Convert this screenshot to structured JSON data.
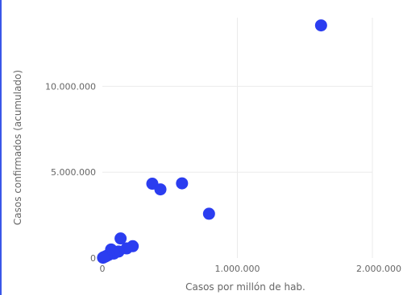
{
  "chart_data": {
    "type": "scatter",
    "xlabel": "Casos por millón de hab.",
    "ylabel": "Casos confirmados (acumulado)",
    "xlim": [
      0,
      2000000
    ],
    "ylim": [
      0,
      14000000
    ],
    "x_ticks": [
      0,
      1000000,
      2000000
    ],
    "x_tick_labels": [
      "0",
      "1.000.000",
      "2.000.000"
    ],
    "y_ticks": [
      0,
      5000000,
      10000000
    ],
    "y_tick_labels": [
      "0",
      "5.000.000",
      "10.000.000"
    ],
    "grid": true,
    "marker_color": "#2b3df0",
    "points": [
      {
        "x": 1620000,
        "y": 13550000
      },
      {
        "x": 590000,
        "y": 4350000
      },
      {
        "x": 370000,
        "y": 4330000
      },
      {
        "x": 430000,
        "y": 4000000
      },
      {
        "x": 790000,
        "y": 2580000
      },
      {
        "x": 135000,
        "y": 1140000
      },
      {
        "x": 225000,
        "y": 690000
      },
      {
        "x": 180000,
        "y": 560000
      },
      {
        "x": 65000,
        "y": 500000
      },
      {
        "x": 120000,
        "y": 380000
      },
      {
        "x": 85000,
        "y": 260000
      },
      {
        "x": 45000,
        "y": 180000
      },
      {
        "x": 30000,
        "y": 120000
      },
      {
        "x": 20000,
        "y": 80000
      },
      {
        "x": 10000,
        "y": 50000
      },
      {
        "x": 5000,
        "y": 20000
      }
    ]
  }
}
